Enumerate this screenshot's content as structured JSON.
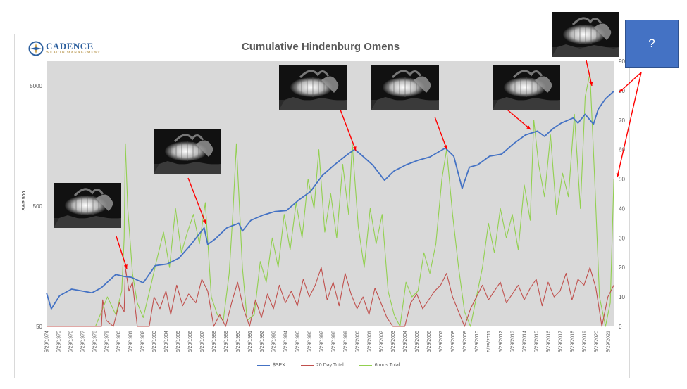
{
  "title": "Cumulative Hindenburg Omens",
  "logo": {
    "name": "CADENCE",
    "subtitle": "WEALTH MANAGEMENT"
  },
  "callout": {
    "text": "?"
  },
  "colors": {
    "spx": "#4472c4",
    "day20": "#c0504d",
    "mos6": "#92d050",
    "plot_bg": "#d9d9d9",
    "callout": "#4472c4",
    "arrow": "#ff0000"
  },
  "photo_icon": "hindenburg-airship-fire-photo",
  "chart_data": {
    "type": "line",
    "title": "Cumulative Hindenburg Omens",
    "ylabel": "S&P 500",
    "y_scale": "log",
    "ylim": [
      50,
      8000
    ],
    "y_ticks": [
      "5000",
      "500",
      "50"
    ],
    "y2lim": [
      0,
      90
    ],
    "y2_ticks": [
      "0",
      "10",
      "20",
      "30",
      "40",
      "50",
      "60",
      "70",
      "80",
      "90"
    ],
    "x_ticks": [
      "5/29/1974",
      "5/29/1975",
      "5/29/1976",
      "5/29/1977",
      "5/29/1978",
      "5/29/1979",
      "5/29/1980",
      "5/29/1981",
      "5/29/1982",
      "5/29/1983",
      "5/29/1984",
      "5/29/1985",
      "5/29/1986",
      "5/29/1987",
      "5/29/1988",
      "5/29/1989",
      "5/29/1990",
      "5/29/1991",
      "5/29/1992",
      "5/29/1993",
      "5/29/1994",
      "5/29/1995",
      "5/29/1996",
      "5/29/1997",
      "5/29/1998",
      "5/29/1999",
      "5/29/2000",
      "5/29/2001",
      "5/29/2002",
      "5/29/2003",
      "5/29/2004",
      "5/29/2005",
      "5/29/2006",
      "5/29/2007",
      "5/29/2008",
      "5/29/2009",
      "5/29/2010",
      "5/29/2011",
      "5/29/2012",
      "5/29/2013",
      "5/29/2014",
      "5/29/2015",
      "5/29/2016",
      "5/29/2017",
      "5/29/2018",
      "5/29/2019",
      "5/29/2020",
      "5/29/2021"
    ],
    "legend_position": "bottom",
    "series": [
      {
        "name": "$SPX",
        "axis": "left",
        "x": [
          1974.4,
          1974.8,
          1975.5,
          1976.5,
          1977.5,
          1978.2,
          1979.0,
          1980.2,
          1980.9,
          1981.5,
          1982.5,
          1983.5,
          1984.5,
          1985.5,
          1986.5,
          1987.6,
          1987.9,
          1988.5,
          1989.5,
          1990.5,
          1990.8,
          1991.5,
          1992.5,
          1993.5,
          1994.5,
          1995.5,
          1996.5,
          1997.5,
          1998.5,
          1999.5,
          2000.2,
          2000.8,
          2001.7,
          2002.7,
          2003.5,
          2004.5,
          2005.5,
          2006.5,
          2007.8,
          2008.5,
          2009.2,
          2009.8,
          2010.5,
          2011.5,
          2012.5,
          2013.5,
          2014.5,
          2015.5,
          2016.1,
          2016.8,
          2017.5,
          2018.5,
          2018.9,
          2019.5,
          2020.2,
          2020.6,
          2021.2,
          2021.9
        ],
        "values": [
          95,
          70,
          90,
          102,
          98,
          95,
          105,
          135,
          130,
          128,
          115,
          160,
          165,
          185,
          240,
          330,
          240,
          265,
          330,
          360,
          310,
          380,
          420,
          450,
          460,
          560,
          660,
          900,
          1100,
          1320,
          1480,
          1320,
          1100,
          820,
          980,
          1100,
          1200,
          1280,
          1520,
          1300,
          700,
          1050,
          1100,
          1300,
          1350,
          1650,
          1950,
          2100,
          1900,
          2200,
          2450,
          2700,
          2450,
          2900,
          2400,
          3200,
          3900,
          4500
        ]
      },
      {
        "name": "20 Day Total",
        "axis": "right",
        "x": [
          1974.4,
          1979.0,
          1979.1,
          1979.4,
          1980.0,
          1980.5,
          1980.9,
          1981.0,
          1981.3,
          1981.6,
          1982.0,
          1983.0,
          1983.4,
          1983.9,
          1984.4,
          1984.8,
          1985.3,
          1985.8,
          1986.3,
          1986.9,
          1987.4,
          1987.9,
          1988.4,
          1988.9,
          1989.4,
          1989.9,
          1990.4,
          1990.9,
          1991.4,
          1991.9,
          1992.4,
          1992.9,
          1993.4,
          1993.9,
          1994.4,
          1994.9,
          1995.4,
          1995.9,
          1996.4,
          1996.9,
          1997.4,
          1997.9,
          1998.4,
          1998.9,
          1999.4,
          1999.9,
          2000.4,
          2000.9,
          2001.4,
          2001.9,
          2002.4,
          2002.9,
          2003.4,
          2003.9,
          2004.4,
          2004.9,
          2005.4,
          2005.9,
          2006.4,
          2006.9,
          2007.4,
          2007.9,
          2008.4,
          2008.9,
          2009.4,
          2009.9,
          2010.4,
          2010.9,
          2011.4,
          2011.9,
          2012.4,
          2012.9,
          2013.4,
          2013.9,
          2014.4,
          2014.9,
          2015.4,
          2015.9,
          2016.4,
          2016.9,
          2017.4,
          2017.9,
          2018.4,
          2018.9,
          2019.4,
          2019.9,
          2020.4,
          2020.9,
          2021.4,
          2021.9
        ],
        "values": [
          0,
          0,
          9,
          2,
          0,
          8,
          5,
          20,
          12,
          15,
          0,
          0,
          10,
          6,
          12,
          4,
          14,
          7,
          11,
          8,
          16,
          12,
          0,
          4,
          0,
          8,
          15,
          6,
          0,
          9,
          3,
          11,
          6,
          14,
          8,
          12,
          7,
          16,
          10,
          14,
          20,
          9,
          15,
          7,
          18,
          11,
          6,
          10,
          4,
          13,
          8,
          3,
          0,
          0,
          0,
          8,
          11,
          6,
          9,
          12,
          14,
          18,
          10,
          5,
          0,
          6,
          10,
          14,
          9,
          12,
          15,
          8,
          11,
          14,
          9,
          13,
          16,
          7,
          15,
          10,
          12,
          18,
          9,
          16,
          14,
          20,
          13,
          0,
          10,
          14
        ]
      },
      {
        "name": "6 mos Total",
        "axis": "right",
        "x": [
          1974.4,
          1978.5,
          1979.0,
          1979.5,
          1980.2,
          1980.7,
          1980.9,
          1981.0,
          1981.2,
          1981.6,
          1982.0,
          1982.5,
          1983.2,
          1983.6,
          1984.2,
          1984.7,
          1985.2,
          1985.7,
          1986.2,
          1986.7,
          1987.2,
          1987.7,
          1988.2,
          1988.7,
          1989.2,
          1989.7,
          1990.0,
          1990.3,
          1990.8,
          1991.2,
          1991.8,
          1992.3,
          1992.8,
          1993.3,
          1993.8,
          1994.3,
          1994.8,
          1995.3,
          1995.8,
          1996.3,
          1996.8,
          1997.2,
          1997.7,
          1998.2,
          1998.7,
          1999.2,
          1999.7,
          2000.0,
          2000.5,
          2001.0,
          2001.5,
          2002.0,
          2002.5,
          2003.0,
          2003.5,
          2004.0,
          2004.5,
          2005.0,
          2005.5,
          2006.0,
          2006.5,
          2007.0,
          2007.5,
          2007.9,
          2008.4,
          2008.9,
          2009.4,
          2009.9,
          2010.4,
          2010.9,
          2011.4,
          2011.9,
          2012.4,
          2012.9,
          2013.4,
          2013.9,
          2014.4,
          2014.9,
          2015.2,
          2015.6,
          2016.1,
          2016.6,
          2017.1,
          2017.6,
          2018.1,
          2018.6,
          2019.1,
          2019.5,
          2019.9,
          2020.3,
          2020.7,
          2021.2,
          2021.6,
          2021.9
        ],
        "values": [
          0,
          0,
          5,
          10,
          4,
          12,
          30,
          62,
          40,
          18,
          8,
          3,
          15,
          22,
          32,
          20,
          40,
          25,
          32,
          38,
          28,
          42,
          10,
          4,
          2,
          18,
          38,
          62,
          20,
          2,
          4,
          22,
          15,
          30,
          20,
          38,
          26,
          42,
          30,
          50,
          40,
          60,
          32,
          45,
          30,
          55,
          38,
          62,
          34,
          20,
          40,
          28,
          38,
          12,
          4,
          0,
          15,
          10,
          12,
          25,
          18,
          28,
          50,
          60,
          38,
          20,
          5,
          0,
          10,
          20,
          35,
          25,
          40,
          30,
          38,
          26,
          48,
          36,
          70,
          55,
          44,
          65,
          38,
          52,
          44,
          72,
          40,
          78,
          86,
          50,
          10,
          0,
          8,
          50
        ]
      }
    ]
  }
}
